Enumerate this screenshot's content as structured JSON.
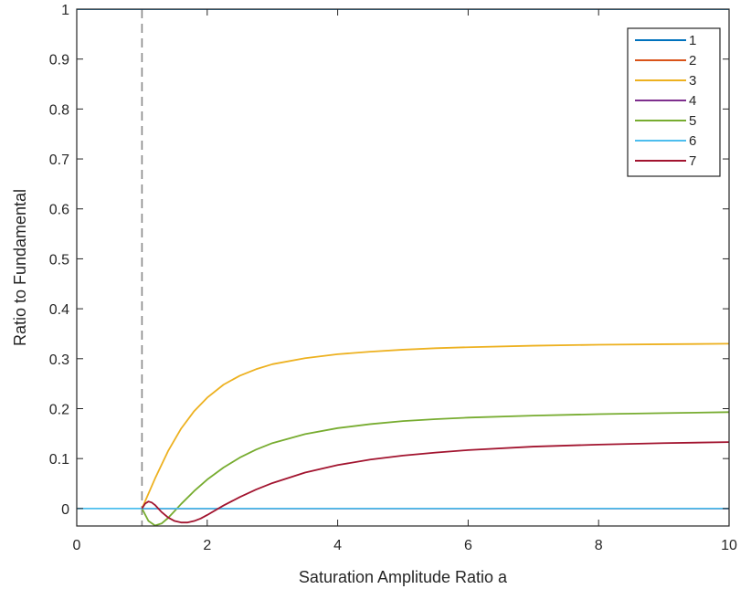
{
  "chart_data": {
    "type": "line",
    "title": "",
    "xlabel": "Saturation Amplitude Ratio a",
    "ylabel": "Ratio to Fundamental",
    "xlim": [
      0,
      10
    ],
    "ylim": [
      -0.035,
      1
    ],
    "xticks": [
      0,
      2,
      4,
      6,
      8,
      10
    ],
    "yticks": [
      0,
      0.1,
      0.2,
      0.3,
      0.4,
      0.5,
      0.6,
      0.7,
      0.8,
      0.9,
      1
    ],
    "xtick_labels": [
      "0",
      "2",
      "4",
      "6",
      "8",
      "10"
    ],
    "ytick_labels": [
      "0",
      "0.1",
      "0.2",
      "0.3",
      "0.4",
      "0.5",
      "0.6",
      "0.7",
      "0.8",
      "0.9",
      "1"
    ],
    "grid": false,
    "legend_position": "top-right",
    "reference_line": {
      "x": 1,
      "style": "dashed",
      "color": "#888888"
    },
    "series": [
      {
        "name": "1",
        "color": "#0072BD",
        "x": [
          0,
          10
        ],
        "y": [
          1,
          1
        ]
      },
      {
        "name": "2",
        "color": "#D95319",
        "x": [
          1,
          10
        ],
        "y": [
          0,
          0
        ]
      },
      {
        "name": "3",
        "color": "#EDB120",
        "x": [
          1,
          1.2,
          1.4,
          1.6,
          1.8,
          2,
          2.25,
          2.5,
          2.75,
          3,
          3.5,
          4,
          4.5,
          5,
          5.5,
          6,
          7,
          8,
          9,
          10
        ],
        "y": [
          0,
          0.06,
          0.115,
          0.16,
          0.195,
          0.222,
          0.248,
          0.266,
          0.279,
          0.289,
          0.301,
          0.309,
          0.314,
          0.318,
          0.321,
          0.323,
          0.326,
          0.328,
          0.329,
          0.33
        ]
      },
      {
        "name": "4",
        "color": "#7E2F8E",
        "x": [
          1,
          10
        ],
        "y": [
          0,
          0
        ]
      },
      {
        "name": "5",
        "color": "#77AC30",
        "x": [
          1,
          1.1,
          1.2,
          1.3,
          1.4,
          1.5,
          1.6,
          1.8,
          2,
          2.25,
          2.5,
          2.75,
          3,
          3.5,
          4,
          4.5,
          5,
          5.5,
          6,
          7,
          8,
          9,
          10
        ],
        "y": [
          0,
          -0.025,
          -0.034,
          -0.03,
          -0.019,
          -0.005,
          0.009,
          0.035,
          0.058,
          0.082,
          0.102,
          0.118,
          0.131,
          0.149,
          0.161,
          0.169,
          0.175,
          0.179,
          0.182,
          0.186,
          0.189,
          0.191,
          0.193
        ]
      },
      {
        "name": "6",
        "color": "#4DBEEE",
        "x": [
          0,
          10
        ],
        "y": [
          0,
          0
        ]
      },
      {
        "name": "7",
        "color": "#A2142F",
        "x": [
          1,
          1.05,
          1.1,
          1.15,
          1.2,
          1.25,
          1.3,
          1.4,
          1.5,
          1.6,
          1.7,
          1.8,
          1.9,
          2,
          2.25,
          2.5,
          2.75,
          3,
          3.5,
          4,
          4.5,
          5,
          5.5,
          6,
          7,
          8,
          9,
          10
        ],
        "y": [
          0,
          0.01,
          0.014,
          0.012,
          0.007,
          0.0,
          -0.007,
          -0.018,
          -0.025,
          -0.028,
          -0.028,
          -0.025,
          -0.02,
          -0.013,
          0.006,
          0.023,
          0.038,
          0.051,
          0.072,
          0.087,
          0.098,
          0.106,
          0.112,
          0.117,
          0.124,
          0.128,
          0.131,
          0.133
        ]
      }
    ]
  }
}
